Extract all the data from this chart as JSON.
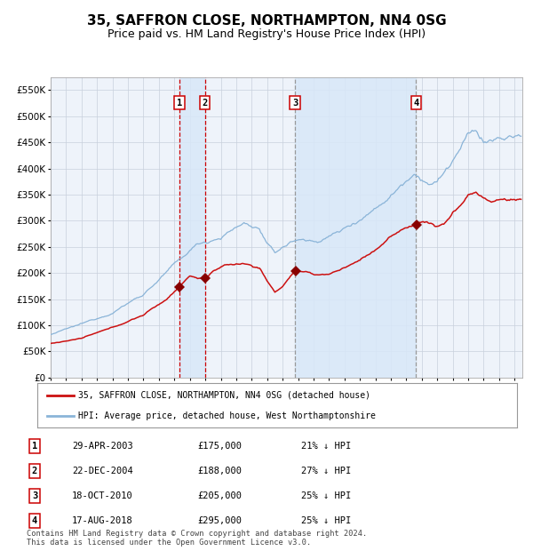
{
  "title": "35, SAFFRON CLOSE, NORTHAMPTON, NN4 0SG",
  "subtitle": "Price paid vs. HM Land Registry's House Price Index (HPI)",
  "title_fontsize": 11,
  "subtitle_fontsize": 9,
  "xlim_start": 1995.0,
  "xlim_end": 2025.5,
  "ylim": [
    0,
    575000
  ],
  "yticks": [
    0,
    50000,
    100000,
    150000,
    200000,
    250000,
    300000,
    350000,
    400000,
    450000,
    500000,
    550000
  ],
  "background_color": "#ffffff",
  "plot_bg_color": "#eef3fa",
  "grid_color": "#c8d0dc",
  "hpi_color": "#8ab4d8",
  "price_color": "#cc1111",
  "sale_marker_color": "#880000",
  "vline_color_red": "#cc0000",
  "vline_color_gray": "#999999",
  "shade_color": "#d8e8f8",
  "legend_label_price": "35, SAFFRON CLOSE, NORTHAMPTON, NN4 0SG (detached house)",
  "legend_label_hpi": "HPI: Average price, detached house, West Northamptonshire",
  "footer": "Contains HM Land Registry data © Crown copyright and database right 2024.\nThis data is licensed under the Open Government Licence v3.0.",
  "sales": [
    {
      "num": 1,
      "date_label": "29-APR-2003",
      "date_float": 2003.32,
      "price": 175000,
      "pct": "21% ↓ HPI"
    },
    {
      "num": 2,
      "date_label": "22-DEC-2004",
      "date_float": 2004.97,
      "price": 188000,
      "pct": "27% ↓ HPI"
    },
    {
      "num": 3,
      "date_label": "18-OCT-2010",
      "date_float": 2010.8,
      "price": 205000,
      "pct": "25% ↓ HPI"
    },
    {
      "num": 4,
      "date_label": "17-AUG-2018",
      "date_float": 2018.63,
      "price": 295000,
      "pct": "25% ↓ HPI"
    }
  ]
}
